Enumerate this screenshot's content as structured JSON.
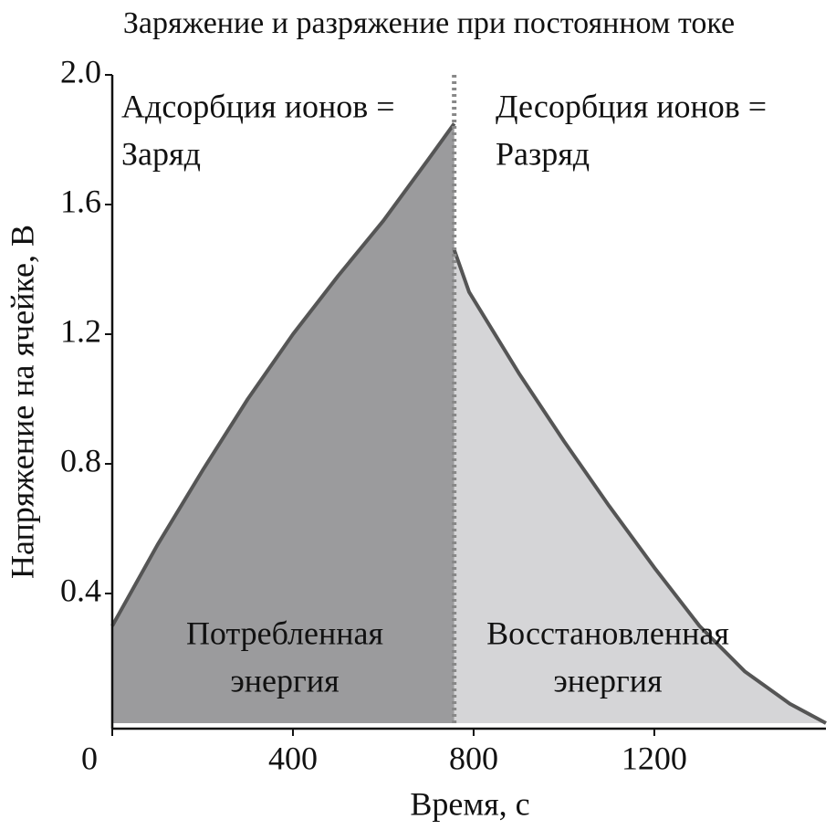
{
  "chart_data": {
    "type": "area",
    "title": "Заряжение  и разряжение при постоянном токе",
    "xlabel": "Время, с",
    "ylabel": "Напряжение на ячейке, В",
    "xlim": [
      0,
      1580
    ],
    "ylim": [
      0,
      2.0
    ],
    "xticks": [
      0,
      400,
      800,
      1200
    ],
    "yticks": [
      0.4,
      0.8,
      1.2,
      1.6,
      {
        "value": 2.0,
        "label": "2.0"
      }
    ],
    "series": [
      {
        "color": "#9b9b9d",
        "x": [
          0,
          100,
          200,
          300,
          400,
          500,
          600,
          700,
          757
        ],
        "values": [
          0.3,
          0.55,
          0.78,
          1.0,
          1.2,
          1.38,
          1.55,
          1.74,
          1.85
        ]
      },
      {
        "color": "#d5d5d7",
        "x": [
          757,
          790,
          900,
          1000,
          1100,
          1200,
          1300,
          1400,
          1500,
          1580
        ],
        "values": [
          1.46,
          1.33,
          1.08,
          0.87,
          0.67,
          0.48,
          0.3,
          0.16,
          0.06,
          0
        ]
      }
    ],
    "annotations": [
      {
        "lines": [
          "Адсорбция ионов =",
          "Заряд"
        ]
      },
      {
        "lines": [
          "Десорбция ионов =",
          "Разряд"
        ]
      },
      {
        "lines": [
          "Потребленная",
          "энергия"
        ]
      },
      {
        "lines": [
          "Восстановленная",
          "энергия"
        ]
      }
    ]
  }
}
